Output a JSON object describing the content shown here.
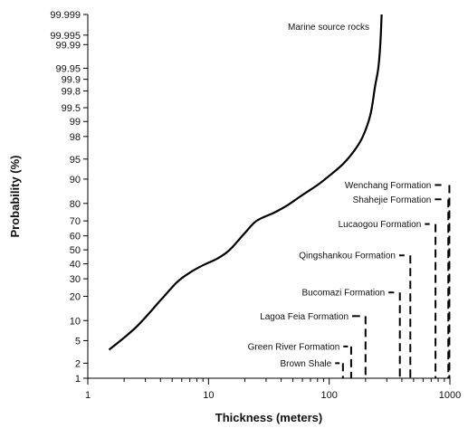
{
  "chart_data": {
    "type": "line",
    "title": "",
    "xlabel": "Thickness (meters)",
    "ylabel": "Probability (%)",
    "x_scale": "log",
    "y_scale": "probability",
    "xlim": [
      1,
      1000
    ],
    "ylim": [
      1,
      99.999
    ],
    "x_ticks": [
      {
        "value": 1,
        "label": "1"
      },
      {
        "value": 10,
        "label": "10"
      },
      {
        "value": 100,
        "label": "100"
      },
      {
        "value": 1000,
        "label": "1000"
      }
    ],
    "y_ticks": [
      {
        "value": 1,
        "label": "1"
      },
      {
        "value": 2,
        "label": "2"
      },
      {
        "value": 5,
        "label": "5"
      },
      {
        "value": 10,
        "label": "10"
      },
      {
        "value": 20,
        "label": "20"
      },
      {
        "value": 30,
        "label": "30"
      },
      {
        "value": 40,
        "label": "40"
      },
      {
        "value": 50,
        "label": "50"
      },
      {
        "value": 60,
        "label": "60"
      },
      {
        "value": 70,
        "label": "70"
      },
      {
        "value": 80,
        "label": "80"
      },
      {
        "value": 90,
        "label": "90"
      },
      {
        "value": 95,
        "label": "95"
      },
      {
        "value": 98,
        "label": "98"
      },
      {
        "value": 99,
        "label": "99"
      },
      {
        "value": 99.5,
        "label": "99.5"
      },
      {
        "value": 99.8,
        "label": "99.8"
      },
      {
        "value": 99.9,
        "label": "99.9"
      },
      {
        "value": 99.95,
        "label": "99.95"
      },
      {
        "value": 99.99,
        "label": "99.99"
      },
      {
        "value": 99.995,
        "label": "99.995"
      },
      {
        "value": 99.999,
        "label": "99.999"
      }
    ],
    "grid": false,
    "curve_label": "Marine source rocks",
    "series": [
      {
        "x": [
          1.5,
          2.5,
          4,
          5.5,
          7,
          9,
          12,
          15,
          20,
          25,
          35,
          45,
          60,
          80,
          100,
          130,
          160,
          190,
          220,
          240,
          255,
          265,
          272
        ],
        "y": [
          3.5,
          8,
          18,
          28,
          34,
          39,
          44,
          50,
          62,
          70,
          75,
          79,
          84,
          88,
          91,
          94,
          96.3,
          98,
          99.3,
          99.85,
          99.95,
          99.99,
          99.999
        ]
      }
    ],
    "formations": [
      {
        "label": "Brown Shale",
        "label_y": 2,
        "leader_x0": 112,
        "leader_x1": 122,
        "x": 130,
        "y_top": 2
      },
      {
        "label": "Green River Formation",
        "label_y": 4,
        "leader_x0": 131,
        "leader_x1": 143,
        "x": 152,
        "y_top": 4
      },
      {
        "label": "Lagoa Feia Formation",
        "label_y": 11.5,
        "leader_x0": 155,
        "leader_x1": 180,
        "x": 200,
        "y_top": 11.5
      },
      {
        "label": "Bucomazi Formation",
        "label_y": 22,
        "leader_x0": 310,
        "leader_x1": 345,
        "x": 385,
        "y_top": 22
      },
      {
        "label": "Qingshankou Formation",
        "label_y": 46,
        "leader_x0": 380,
        "leader_x1": 420,
        "x": 470,
        "y_top": 46
      },
      {
        "label": "Lucaogou Formation",
        "label_y": 68,
        "leader_x0": 620,
        "leader_x1": 680,
        "x": 760,
        "y_top": 68
      },
      {
        "label": "Shahejie Formation",
        "label_y": 82,
        "leader_x0": 750,
        "leader_x1": 850,
        "x": 970,
        "y_top": 82
      },
      {
        "label": "Wenchang Formation",
        "label_y": 88,
        "leader_x0": 750,
        "leader_x1": 850,
        "x": 990,
        "y_top": 88
      }
    ],
    "line_color": "#000000"
  }
}
